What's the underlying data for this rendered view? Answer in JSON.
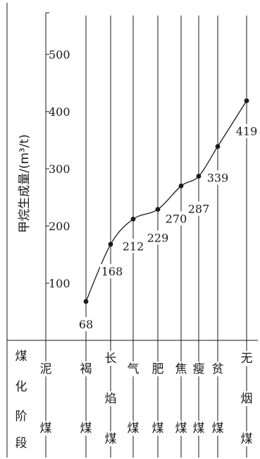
{
  "chart_data": {
    "type": "line",
    "ylabel": "甲烷生成量/(m³/t)",
    "ylim": [
      0,
      500
    ],
    "yticks": [
      100,
      200,
      300,
      400,
      500
    ],
    "grid": true,
    "stage_header": [
      "煤",
      "化",
      "阶",
      "段"
    ],
    "categories": [
      {
        "name": "泥煤",
        "chars": [
          "泥",
          "",
          "煤"
        ]
      },
      {
        "name": "褐煤",
        "chars": [
          "褐",
          "",
          "煤"
        ]
      },
      {
        "name": "长焰煤",
        "chars": [
          "长",
          "焰",
          "煤"
        ]
      },
      {
        "name": "气煤",
        "chars": [
          "气",
          "",
          "煤"
        ]
      },
      {
        "name": "肥煤",
        "chars": [
          "肥",
          "",
          "煤"
        ]
      },
      {
        "name": "焦煤",
        "chars": [
          "焦",
          "",
          "煤"
        ]
      },
      {
        "name": "瘦煤",
        "chars": [
          "瘦",
          "",
          "煤"
        ]
      },
      {
        "name": "贫煤",
        "chars": [
          "贫",
          "",
          "煤"
        ]
      },
      {
        "name": "无烟煤",
        "chars": [
          "无",
          "烟",
          "煤"
        ]
      }
    ],
    "points": [
      {
        "category": "褐煤",
        "value": 68
      },
      {
        "category": "长焰煤",
        "value": 168
      },
      {
        "category": "气煤",
        "value": 212
      },
      {
        "category": "肥煤",
        "value": 229
      },
      {
        "category": "焦煤",
        "value": 270
      },
      {
        "category": "瘦煤",
        "value": 287
      },
      {
        "category": "贫煤",
        "value": 339
      },
      {
        "category": "无烟煤",
        "value": 419
      }
    ]
  }
}
